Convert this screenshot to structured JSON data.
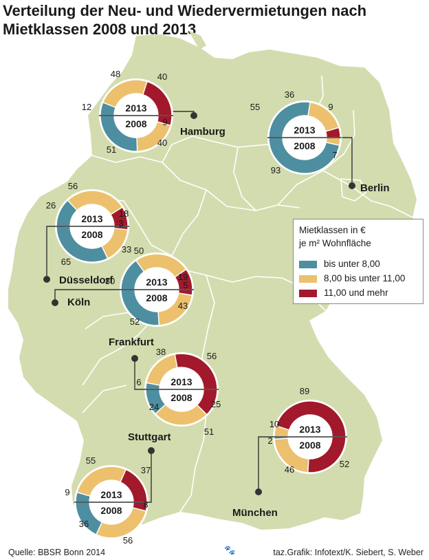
{
  "chart_data": {
    "type": "donut",
    "title": "Verteilung der Neu- und Wiedervermietungen nach Mietklassen 2008 und 2013",
    "ring_labels": {
      "top": "2013",
      "bottom": "2008"
    },
    "legend": {
      "title_line1": "Mietklassen in €",
      "title_line2": "je m² Wohnfläche",
      "entries": [
        {
          "label": "bis unter 8,00",
          "color": "#4e8ea1"
        },
        {
          "label": "8,00 bis unter 11,00",
          "color": "#ecc06d"
        },
        {
          "label": "11,00 und mehr",
          "color": "#a2192c"
        }
      ]
    },
    "cities": [
      {
        "name": "Hamburg",
        "y2013": [
          12,
          48,
          40
        ],
        "y2008": [
          51,
          40,
          9
        ]
      },
      {
        "name": "Berlin",
        "y2013": [
          55,
          36,
          9
        ],
        "y2008": [
          93,
          7,
          0
        ]
      },
      {
        "name": "Düsseldorf",
        "y2013": [
          26,
          56,
          18
        ],
        "y2008": [
          65,
          33,
          3
        ]
      },
      {
        "name": "Köln",
        "y2013": [
          30,
          50,
          19
        ],
        "y2008": [
          52,
          43,
          5
        ]
      },
      {
        "name": "Frankfurt",
        "y2013": [
          6,
          38,
          56
        ],
        "y2008": [
          24,
          51,
          25
        ]
      },
      {
        "name": "Stuttgart",
        "y2013": [
          9,
          55,
          37
        ],
        "y2008": [
          36,
          56,
          8
        ]
      },
      {
        "name": "München",
        "y2013": [
          0,
          10,
          89
        ],
        "y2008": [
          2,
          46,
          52
        ]
      }
    ]
  },
  "source": "Quelle: BBSR Bonn 2014",
  "credit": "taz.Grafik: Infotext/K. Siebert, S. Weber",
  "colors": {
    "map_fill": "#d3dcae",
    "map_border": "#ffffff",
    "background": "#ffffff"
  }
}
